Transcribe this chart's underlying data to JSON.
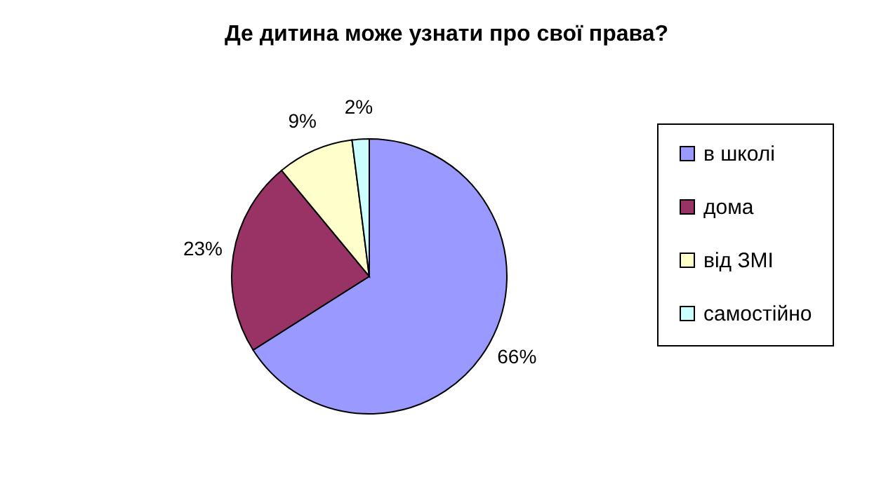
{
  "chart_data": {
    "type": "pie",
    "title": "Де дитина може узнати про свої права?",
    "categories": [
      "в школі",
      "дома",
      "від ЗМІ",
      "самостійно"
    ],
    "values": [
      66,
      23,
      9,
      2
    ],
    "colors": [
      "#9999ff",
      "#993366",
      "#ffffcc",
      "#ccffff"
    ],
    "value_labels": [
      "66%",
      "23%",
      "9%",
      "2%"
    ],
    "legend": "right"
  }
}
